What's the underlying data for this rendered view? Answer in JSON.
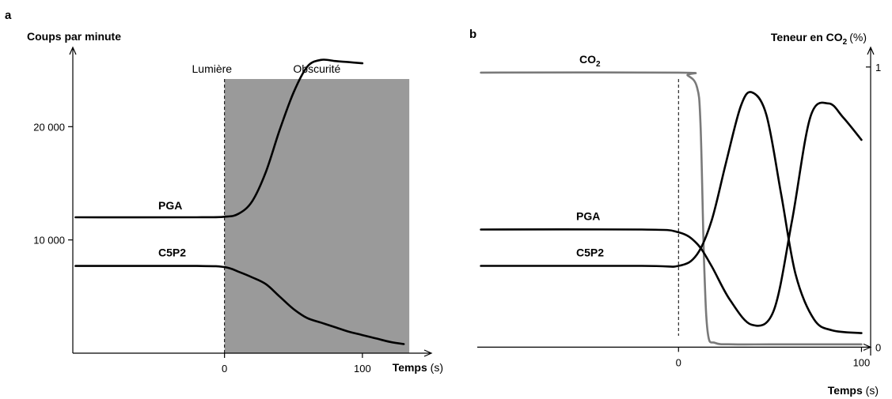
{
  "chart_data": [
    {
      "type": "line",
      "panel": "a",
      "ylabel": "Coups par minute",
      "xlabel": "Temps",
      "xlabel_unit": "(s)",
      "xlim": [
        -110,
        150
      ],
      "ylim": [
        0,
        27000
      ],
      "x_ticks": [
        0,
        100
      ],
      "x_tick_labels": [
        "0",
        "100"
      ],
      "y_ticks": [
        10000,
        20000
      ],
      "y_tick_labels": [
        "10 000",
        "20 000"
      ],
      "phases": [
        {
          "label": "Lumière",
          "x_start": -110,
          "x_end": 0
        },
        {
          "label": "Obscurité",
          "x_start": 0,
          "x_end": 150,
          "shaded": true
        }
      ],
      "series": [
        {
          "name": "PGA",
          "x": [
            -108,
            -20,
            0,
            10,
            20,
            30,
            40,
            50,
            60,
            70,
            80,
            90,
            100
          ],
          "y": [
            12000,
            12000,
            12050,
            12300,
            13400,
            16000,
            19700,
            23000,
            25300,
            25900,
            25800,
            25700,
            25600
          ]
        },
        {
          "name": "C5P2",
          "x": [
            -108,
            -20,
            0,
            10,
            20,
            30,
            40,
            50,
            60,
            70,
            80,
            90,
            100,
            110,
            120,
            130
          ],
          "y": [
            7700,
            7700,
            7600,
            7200,
            6700,
            6100,
            5000,
            3900,
            3100,
            2700,
            2300,
            1900,
            1600,
            1300,
            1000,
            800
          ]
        }
      ]
    },
    {
      "type": "line",
      "panel": "b",
      "ylabel": "Teneur en CO",
      "ylabel_sub": "2",
      "ylabel_unit": "(%)",
      "xlabel": "Temps",
      "xlabel_unit": "(s)",
      "xlim": [
        -110,
        105
      ],
      "ylim": [
        -0.03,
        1.07
      ],
      "x_ticks": [
        0,
        100
      ],
      "x_tick_labels": [
        "0",
        "100"
      ],
      "y_ticks": [
        0,
        1
      ],
      "y_tick_labels": [
        "0",
        "1"
      ],
      "series": [
        {
          "name": "CO",
          "name_sub": "2",
          "x": [
            -108,
            0,
            5,
            10,
            12,
            14,
            16,
            20,
            30,
            50,
            80,
            100
          ],
          "y": [
            0.98,
            0.98,
            0.97,
            0.93,
            0.8,
            0.3,
            0.05,
            0.015,
            0.01,
            0.01,
            0.01,
            0.01
          ]
        },
        {
          "name": "PGA",
          "x": [
            -108,
            -20,
            0,
            10,
            18,
            28,
            40,
            52,
            62,
            72,
            82,
            90,
            100
          ],
          "y": [
            0.42,
            0.42,
            0.41,
            0.37,
            0.29,
            0.17,
            0.08,
            0.13,
            0.45,
            0.82,
            0.87,
            0.82,
            0.74
          ]
        },
        {
          "name": "C5P2",
          "x": [
            -108,
            -20,
            0,
            10,
            18,
            26,
            34,
            40,
            48,
            56,
            64,
            74,
            84,
            100
          ],
          "y": [
            0.29,
            0.29,
            0.29,
            0.33,
            0.45,
            0.66,
            0.86,
            0.91,
            0.83,
            0.55,
            0.26,
            0.1,
            0.06,
            0.05
          ]
        }
      ]
    }
  ]
}
